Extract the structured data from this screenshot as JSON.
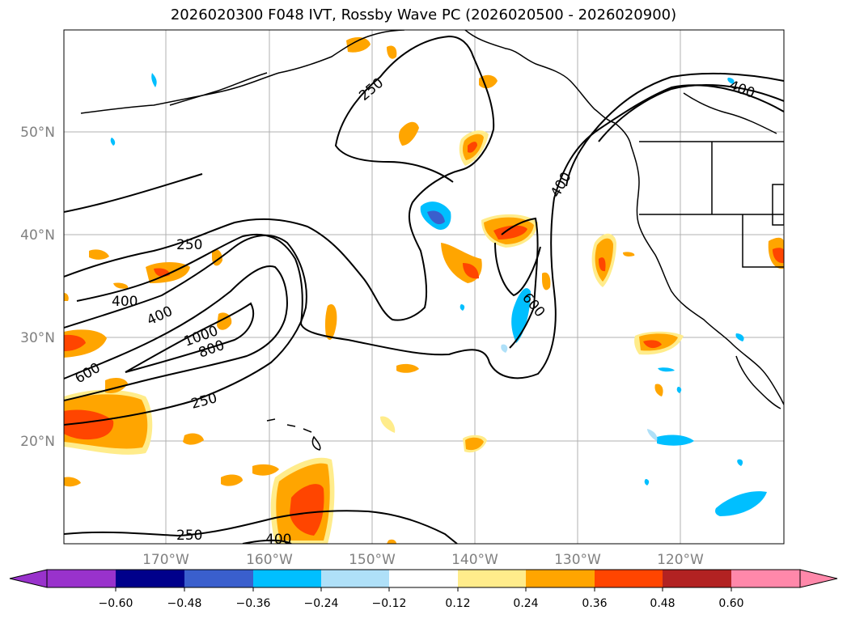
{
  "title": "2026020300 F048 IVT, Rossby Wave PC (2026020500 - 2026020900)",
  "map": {
    "lat_labels": [
      "50°N",
      "40°N",
      "30°N",
      "20°N"
    ],
    "lon_labels": [
      "170°W",
      "160°W",
      "150°W",
      "140°W",
      "130°W",
      "120°W"
    ],
    "contour_labels": [
      "250",
      "250",
      "400",
      "400",
      "600",
      "1000",
      "800",
      "250",
      "600",
      "400",
      "400",
      "250",
      "400"
    ],
    "colors": {
      "coast": "#000000",
      "grid": "#b0b0b0",
      "contour": "#000000",
      "pos_012": "#ffec8b",
      "pos_024": "#ffa500",
      "pos_036": "#ff4500",
      "neg_012": "#add8f5",
      "neg_024": "#00bfff",
      "neg_036": "#3a5fcd"
    }
  },
  "colorbar": {
    "colors": [
      "#9932cc",
      "#00008b",
      "#3a5fcd",
      "#00bfff",
      "#afe0f8",
      "#ffffff",
      "#ffec8b",
      "#ffa500",
      "#ff4500",
      "#b22222",
      "#ff88aa",
      "#ff88aa"
    ],
    "ticks": [
      "−0.60",
      "−0.48",
      "−0.36",
      "−0.24",
      "−0.12",
      "0.12",
      "0.24",
      "0.36",
      "0.48",
      "0.60"
    ]
  }
}
